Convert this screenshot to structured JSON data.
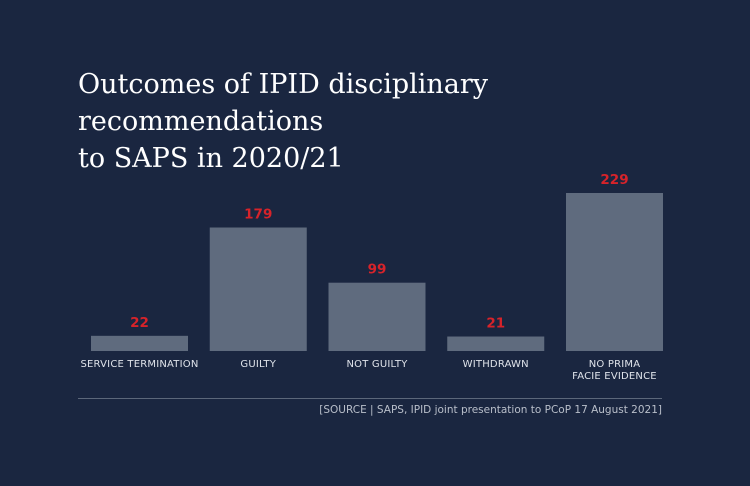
{
  "title_lines": [
    "Outcomes of IPID disciplinary recommendations",
    "to SAPS in 2020/21"
  ],
  "source": "[SOURCE | SAPS, IPID joint presentation to PCoP 17 August 2021]",
  "colors": {
    "background": "#1a2640",
    "bar": "#5f6b7e",
    "value_label": "#d7232a",
    "title": "#ffffff"
  },
  "chart_data": {
    "type": "bar",
    "title": "Outcomes of IPID disciplinary recommendations to SAPS in 2020/21",
    "categories": [
      [
        "SERVICE TERMINATION"
      ],
      [
        "GUILTY"
      ],
      [
        "NOT GUILTY"
      ],
      [
        "WITHDRAWN"
      ],
      [
        "NO PRIMA",
        "FACIE EVIDENCE"
      ]
    ],
    "values": [
      22,
      179,
      99,
      21,
      229
    ],
    "xlabel": "",
    "ylabel": "",
    "ylim": [
      0,
      229
    ],
    "grid": false,
    "legend": "none"
  }
}
